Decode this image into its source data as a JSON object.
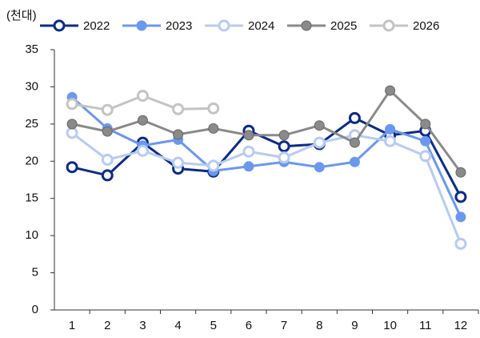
{
  "chart_data": {
    "type": "line",
    "unit_label": "(천대)",
    "categories": [
      "1",
      "2",
      "3",
      "4",
      "5",
      "6",
      "7",
      "8",
      "9",
      "10",
      "11",
      "12"
    ],
    "series": [
      {
        "name": "2022",
        "color": "#0b2c86",
        "filled": false,
        "values": [
          19.2,
          18.1,
          22.5,
          19.0,
          18.6,
          24.1,
          22.0,
          22.3,
          25.8,
          23.5,
          24.1,
          15.2
        ]
      },
      {
        "name": "2023",
        "color": "#6b98ee",
        "filled": true,
        "values": [
          28.6,
          24.4,
          22.1,
          22.9,
          18.7,
          19.3,
          19.9,
          19.2,
          19.9,
          24.3,
          22.7,
          12.5
        ]
      },
      {
        "name": "2024",
        "color": "#b7cbf3",
        "filled": false,
        "values": [
          23.8,
          20.2,
          21.4,
          19.8,
          19.4,
          21.3,
          20.5,
          22.5,
          23.5,
          22.7,
          20.7,
          8.9
        ]
      },
      {
        "name": "2025",
        "color": "#8a8a8a",
        "filled": true,
        "values": [
          25.0,
          24.0,
          25.5,
          23.6,
          24.4,
          23.5,
          23.5,
          24.8,
          22.5,
          29.5,
          25.0,
          18.5
        ]
      },
      {
        "name": "2026",
        "color": "#c4c4c4",
        "filled": false,
        "values": [
          27.7,
          26.9,
          28.8,
          27.0,
          27.1,
          null,
          null,
          null,
          null,
          null,
          null,
          null
        ]
      }
    ],
    "ylim": [
      0,
      35
    ],
    "yticks": [
      0,
      5,
      10,
      15,
      20,
      25,
      30,
      35
    ],
    "grid": false,
    "legend": "top"
  }
}
